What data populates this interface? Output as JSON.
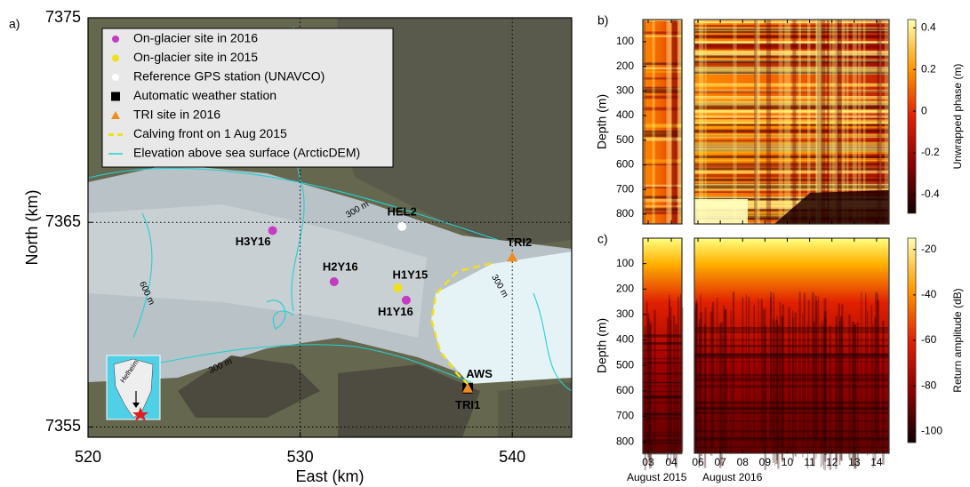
{
  "chart_data": [
    {
      "type": "scatter",
      "panel_label": "a)",
      "xlabel": "East (km)",
      "ylabel": "North (km)",
      "xlim": [
        520,
        542.8
      ],
      "ylim": [
        7354.5,
        7375
      ],
      "xticks": [
        520,
        530,
        540
      ],
      "yticks": [
        7355,
        7365,
        7375
      ],
      "grid": true,
      "legend": "upper left",
      "series": [
        {
          "name": "On-glacier site in 2016",
          "color": "#c43cc4",
          "marker": "circle",
          "x": [
            528.7,
            531.6,
            535.0
          ],
          "y": [
            7364.6,
            7362.1,
            7361.2
          ],
          "labels": [
            "H3Y16",
            "H2Y16",
            "H1Y16"
          ]
        },
        {
          "name": "On-glacier site in 2015",
          "color": "#f0e020",
          "marker": "circle",
          "x": [
            534.6
          ],
          "y": [
            7361.8
          ],
          "labels": [
            "H1Y15"
          ]
        },
        {
          "name": "Reference GPS station (UNAVCO)",
          "color": "#ffffff",
          "marker": "circle",
          "x": [
            534.8
          ],
          "y": [
            7364.8
          ],
          "labels": [
            "HEL2"
          ]
        },
        {
          "name": "Automatic weather station",
          "color": "#000000",
          "marker": "square",
          "x": [
            537.9
          ],
          "y": [
            7356.9
          ],
          "labels": [
            "AWS"
          ]
        },
        {
          "name": "TRI site in 2016",
          "color": "#f08c1e",
          "marker": "triangle",
          "x": [
            540.0,
            537.9
          ],
          "y": [
            7363.3,
            7356.9
          ],
          "labels": [
            "TRI2",
            "TRI1"
          ]
        },
        {
          "name": "Calving front on 1 Aug 2015",
          "color": "#f0e020",
          "marker": "dashed",
          "x": [
            539.0,
            537.4,
            536.4,
            536.2,
            536.6,
            537.4,
            537.9
          ],
          "y": [
            7363.0,
            7362.6,
            7361.5,
            7360.2,
            7358.7,
            7357.6,
            7357.1
          ]
        },
        {
          "name": "Elevation above sea surface (ArcticDEM)",
          "color": "#22d0d0",
          "marker": "line"
        }
      ],
      "annotations": [
        "300 m",
        "300 m",
        "300 m",
        "600 m",
        "Helheim"
      ]
    },
    {
      "type": "heatmap",
      "panel_label": "b)",
      "ylabel": "Depth (m)",
      "ylim": [
        10,
        840
      ],
      "y_inverted": true,
      "yticks": [
        100,
        200,
        300,
        400,
        500,
        600,
        700,
        800
      ],
      "colorbar_label": "Unwrapped phase (m)",
      "clim": [
        -0.49,
        0.44
      ],
      "cticks": [
        -0.4,
        -0.2,
        0,
        0.2,
        0.4
      ],
      "panels": [
        {
          "xlim": [
            2.77,
            4.46
          ],
          "xticks": [
            3,
            4
          ]
        },
        {
          "xlim": [
            5.84,
            14.56
          ],
          "xticks": [
            6,
            7,
            8,
            9,
            10,
            11,
            12,
            13,
            14
          ]
        }
      ]
    },
    {
      "type": "heatmap",
      "panel_label": "c)",
      "ylabel": "Depth (m)",
      "ylim": [
        0,
        845
      ],
      "y_inverted": true,
      "yticks": [
        100,
        200,
        300,
        400,
        500,
        600,
        700,
        800
      ],
      "colorbar_label": "Return amplitude (dB)",
      "clim": [
        -105,
        -15
      ],
      "cticks": [
        -100,
        -80,
        -60,
        -40,
        -20
      ],
      "panels": [
        {
          "label": "August 2015",
          "xlim": [
            2.77,
            4.46
          ],
          "xticks": [
            {
              "value": 3,
              "label": "03"
            },
            {
              "value": 4,
              "label": "04"
            }
          ]
        },
        {
          "label": "August 2016",
          "xlim": [
            5.84,
            14.56
          ],
          "xticks": [
            {
              "value": 6,
              "label": "06"
            },
            {
              "value": 7,
              "label": "07"
            },
            {
              "value": 8,
              "label": "08"
            },
            {
              "value": 9,
              "label": "09"
            },
            {
              "value": 10,
              "label": "10"
            },
            {
              "value": 11,
              "label": "11"
            },
            {
              "value": 12,
              "label": "12"
            },
            {
              "value": 13,
              "label": "13"
            },
            {
              "value": 14,
              "label": "14"
            }
          ]
        }
      ]
    }
  ]
}
